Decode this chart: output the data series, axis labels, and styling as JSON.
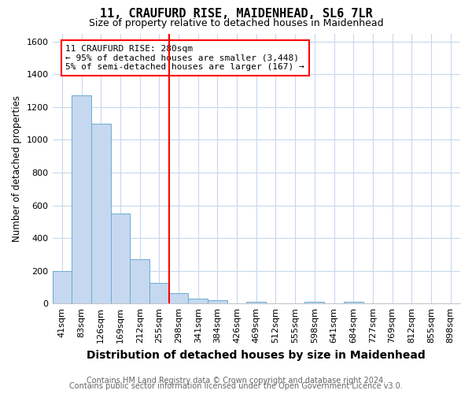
{
  "title1": "11, CRAUFURD RISE, MAIDENHEAD, SL6 7LR",
  "title2": "Size of property relative to detached houses in Maidenhead",
  "xlabel": "Distribution of detached houses by size in Maidenhead",
  "ylabel": "Number of detached properties",
  "categories": [
    "41sqm",
    "83sqm",
    "126sqm",
    "169sqm",
    "212sqm",
    "255sqm",
    "298sqm",
    "341sqm",
    "384sqm",
    "426sqm",
    "469sqm",
    "512sqm",
    "555sqm",
    "598sqm",
    "641sqm",
    "684sqm",
    "727sqm",
    "769sqm",
    "812sqm",
    "855sqm",
    "898sqm"
  ],
  "values": [
    197,
    1272,
    1097,
    549,
    270,
    128,
    63,
    28,
    20,
    0,
    10,
    0,
    0,
    10,
    0,
    10,
    0,
    0,
    0,
    0,
    0
  ],
  "bar_color": "#c5d8f0",
  "bar_edge_color": "#6aabd2",
  "red_line_x": 6,
  "annotation_line1": "11 CRAUFURD RISE: 280sqm",
  "annotation_line2": "← 95% of detached houses are smaller (3,448)",
  "annotation_line3": "5% of semi-detached houses are larger (167) →",
  "annotation_box_color": "white",
  "annotation_box_edge_color": "red",
  "ylim": [
    0,
    1650
  ],
  "yticks": [
    0,
    200,
    400,
    600,
    800,
    1000,
    1200,
    1400,
    1600
  ],
  "footer1": "Contains HM Land Registry data © Crown copyright and database right 2024.",
  "footer2": "Contains public sector information licensed under the Open Government Licence v3.0.",
  "bg_color": "#ffffff",
  "plot_bg_color": "#ffffff",
  "grid_color": "#c8d8ee",
  "title1_fontsize": 11,
  "title2_fontsize": 9,
  "xlabel_fontsize": 10,
  "ylabel_fontsize": 8.5,
  "tick_fontsize": 8,
  "footer_fontsize": 7,
  "annotation_fontsize": 8
}
